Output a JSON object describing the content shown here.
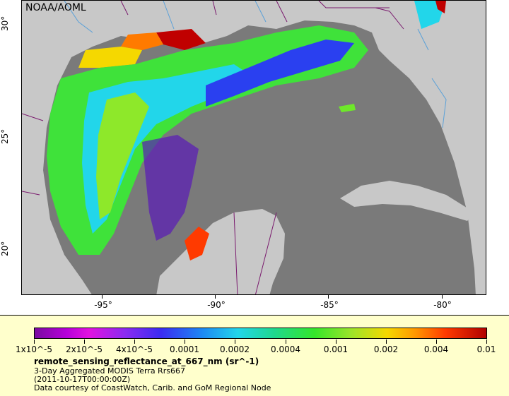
{
  "map": {
    "attribution": "NOAA/AOML",
    "y_ticks": [
      "30°",
      "25°",
      "20°"
    ],
    "x_ticks": [
      "-95°",
      "-90°",
      "-85°",
      "-80°"
    ],
    "colors": {
      "land": "#c8c8c8",
      "ocean_nodata": "#7a7a7a",
      "boundaries": "#7a1a6e",
      "rivers": "#5aa0d8"
    }
  },
  "legend": {
    "ticks": [
      "1x10^-5",
      "2x10^-5",
      "4x10^-5",
      "0.0001",
      "0.0002",
      "0.0004",
      "0.001",
      "0.002",
      "0.004",
      "0.01"
    ],
    "variable": "remote_sensing_reflectance_at_667_nm (sr^-1)",
    "line1": "3-Day Aggregated MODIS Terra Rrs667",
    "line2": "(2011-10-17T00:00:00Z)",
    "line3": "Data courtesy of CoastWatch, Carib. and GoM Regional Node"
  }
}
